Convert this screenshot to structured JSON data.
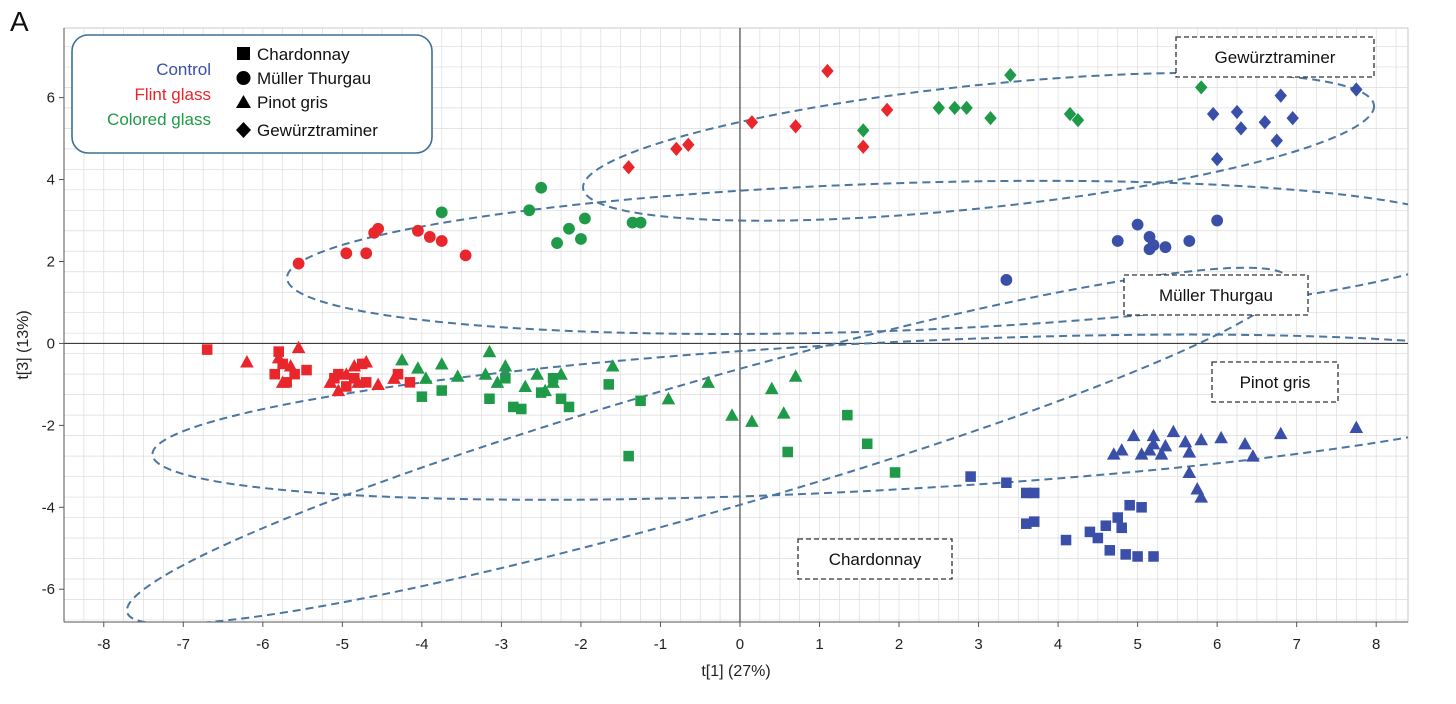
{
  "panel_letter": "A",
  "colors": {
    "Control": "#3a4fa8",
    "Flint glass": "#e8262b",
    "Colored glass": "#1f9a48",
    "ellipse": "#4a76a0",
    "grid": "#dcdcdc"
  },
  "legend": {
    "treatments": [
      "Control",
      "Flint glass",
      "Colored glass"
    ],
    "varieties": [
      "Chardonnay",
      "Müller Thurgau",
      "Pinot gris",
      "Gewürztraminer"
    ],
    "markers": {
      "Chardonnay": "square",
      "Müller Thurgau": "circle",
      "Pinot gris": "triangle",
      "Gewürztraminer": "diamond"
    }
  },
  "chart_data": {
    "type": "scatter",
    "xlabel": "t[1] (27%)",
    "ylabel": "t[3] (13%)",
    "xlim": [
      -8.5,
      8.4
    ],
    "ylim": [
      -6.8,
      7.7
    ],
    "xticks": [
      -8,
      -7,
      -6,
      -5,
      -4,
      -3,
      -2,
      -1,
      0,
      1,
      2,
      3,
      4,
      5,
      6,
      7,
      8
    ],
    "yticks": [
      -6,
      -4,
      -2,
      0,
      2,
      4,
      6
    ],
    "grid": true,
    "cluster_labels": [
      "Gewürztraminer",
      "Müller Thurgau",
      "Pinot gris",
      "Chardonnay"
    ],
    "ellipses": [
      {
        "name": "Gewürztraminer",
        "cx": 3.0,
        "cy": 4.8,
        "rx": 5.0,
        "ry": 1.5,
        "angle_deg": -6
      },
      {
        "name": "Müller Thurgau",
        "cx": 1.8,
        "cy": 2.1,
        "rx": 7.5,
        "ry": 1.8,
        "angle_deg": -2
      },
      {
        "name": "Pinot gris",
        "cx": 1.6,
        "cy": -1.8,
        "rx": 9.0,
        "ry": 1.8,
        "angle_deg": -3
      },
      {
        "name": "Chardonnay",
        "cx": -0.4,
        "cy": -2.5,
        "rx": 7.6,
        "ry": 1.6,
        "angle_deg": -16
      }
    ],
    "series": [
      {
        "variety": "Gewürztraminer",
        "treatment": "Flint glass",
        "points": [
          [
            -1.4,
            4.3
          ],
          [
            -0.8,
            4.75
          ],
          [
            -0.65,
            4.85
          ],
          [
            0.15,
            5.4
          ],
          [
            0.7,
            5.3
          ],
          [
            1.1,
            6.65
          ],
          [
            1.55,
            4.8
          ],
          [
            1.85,
            5.7
          ]
        ]
      },
      {
        "variety": "Gewürztraminer",
        "treatment": "Colored glass",
        "points": [
          [
            1.55,
            5.2
          ],
          [
            2.5,
            5.75
          ],
          [
            2.7,
            5.75
          ],
          [
            2.85,
            5.75
          ],
          [
            3.15,
            5.5
          ],
          [
            3.4,
            6.55
          ],
          [
            4.15,
            5.6
          ],
          [
            4.25,
            5.45
          ],
          [
            5.8,
            6.25
          ]
        ]
      },
      {
        "variety": "Gewürztraminer",
        "treatment": "Control",
        "points": [
          [
            5.95,
            5.6
          ],
          [
            6.0,
            4.5
          ],
          [
            6.25,
            5.65
          ],
          [
            6.3,
            5.25
          ],
          [
            6.6,
            5.4
          ],
          [
            6.75,
            4.95
          ],
          [
            6.8,
            6.05
          ],
          [
            6.95,
            5.5
          ],
          [
            7.75,
            6.2
          ]
        ]
      },
      {
        "variety": "Müller Thurgau",
        "treatment": "Flint glass",
        "points": [
          [
            -5.55,
            1.95
          ],
          [
            -4.95,
            2.2
          ],
          [
            -4.7,
            2.2
          ],
          [
            -4.6,
            2.7
          ],
          [
            -4.55,
            2.8
          ],
          [
            -4.05,
            2.75
          ],
          [
            -3.9,
            2.6
          ],
          [
            -3.75,
            2.5
          ],
          [
            -3.45,
            2.15
          ]
        ]
      },
      {
        "variety": "Müller Thurgau",
        "treatment": "Colored glass",
        "points": [
          [
            -3.75,
            3.2
          ],
          [
            -2.65,
            3.25
          ],
          [
            -2.5,
            3.8
          ],
          [
            -2.3,
            2.45
          ],
          [
            -2.15,
            2.8
          ],
          [
            -2.0,
            2.55
          ],
          [
            -1.95,
            3.05
          ],
          [
            -1.35,
            2.95
          ],
          [
            -1.25,
            2.95
          ]
        ]
      },
      {
        "variety": "Müller Thurgau",
        "treatment": "Control",
        "points": [
          [
            3.35,
            1.55
          ],
          [
            4.75,
            2.5
          ],
          [
            5.0,
            2.9
          ],
          [
            5.15,
            2.6
          ],
          [
            5.15,
            2.3
          ],
          [
            5.2,
            2.4
          ],
          [
            5.35,
            2.35
          ],
          [
            5.65,
            2.5
          ],
          [
            6.0,
            3.0
          ]
        ]
      },
      {
        "variety": "Chardonnay",
        "treatment": "Flint glass",
        "points": [
          [
            -6.7,
            -0.15
          ],
          [
            -5.85,
            -0.75
          ],
          [
            -5.8,
            -0.2
          ],
          [
            -5.75,
            -0.5
          ],
          [
            -5.7,
            -0.95
          ],
          [
            -5.6,
            -0.75
          ],
          [
            -5.45,
            -0.65
          ],
          [
            -5.1,
            -0.85
          ],
          [
            -5.05,
            -0.75
          ],
          [
            -4.95,
            -1.05
          ],
          [
            -4.85,
            -0.85
          ],
          [
            -4.75,
            -0.5
          ],
          [
            -4.7,
            -0.95
          ],
          [
            -4.3,
            -0.75
          ],
          [
            -4.15,
            -0.95
          ]
        ]
      },
      {
        "variety": "Chardonnay",
        "treatment": "Colored glass",
        "points": [
          [
            -4.0,
            -1.3
          ],
          [
            -3.75,
            -1.15
          ],
          [
            -3.15,
            -1.35
          ],
          [
            -2.95,
            -0.85
          ],
          [
            -2.85,
            -1.55
          ],
          [
            -2.75,
            -1.6
          ],
          [
            -2.5,
            -1.2
          ],
          [
            -2.35,
            -0.85
          ],
          [
            -2.25,
            -1.35
          ],
          [
            -2.15,
            -1.55
          ],
          [
            -1.65,
            -1.0
          ],
          [
            -1.4,
            -2.75
          ],
          [
            -1.25,
            -1.4
          ],
          [
            1.35,
            -1.75
          ],
          [
            1.6,
            -2.45
          ],
          [
            0.6,
            -2.65
          ],
          [
            1.95,
            -3.15
          ]
        ]
      },
      {
        "variety": "Chardonnay",
        "treatment": "Control",
        "points": [
          [
            2.9,
            -3.25
          ],
          [
            3.35,
            -3.4
          ],
          [
            3.6,
            -3.65
          ],
          [
            3.7,
            -3.65
          ],
          [
            3.6,
            -4.4
          ],
          [
            3.7,
            -4.35
          ],
          [
            4.1,
            -4.8
          ],
          [
            4.4,
            -4.6
          ],
          [
            4.5,
            -4.75
          ],
          [
            4.6,
            -4.45
          ],
          [
            4.65,
            -5.05
          ],
          [
            4.75,
            -4.25
          ],
          [
            4.8,
            -4.5
          ],
          [
            4.85,
            -5.15
          ],
          [
            4.9,
            -3.95
          ],
          [
            5.0,
            -5.2
          ],
          [
            5.05,
            -4.0
          ],
          [
            5.2,
            -5.2
          ]
        ]
      },
      {
        "variety": "Pinot gris",
        "treatment": "Flint glass",
        "points": [
          [
            -6.2,
            -0.45
          ],
          [
            -5.8,
            -0.35
          ],
          [
            -5.75,
            -0.95
          ],
          [
            -5.65,
            -0.55
          ],
          [
            -5.55,
            -0.1
          ],
          [
            -5.15,
            -0.95
          ],
          [
            -5.05,
            -1.15
          ],
          [
            -4.95,
            -0.75
          ],
          [
            -4.85,
            -0.55
          ],
          [
            -4.8,
            -0.95
          ],
          [
            -4.7,
            -0.45
          ],
          [
            -4.55,
            -1.0
          ],
          [
            -4.35,
            -0.85
          ]
        ]
      },
      {
        "variety": "Pinot gris",
        "treatment": "Colored glass",
        "points": [
          [
            -4.25,
            -0.4
          ],
          [
            -4.05,
            -0.6
          ],
          [
            -3.95,
            -0.85
          ],
          [
            -3.75,
            -0.5
          ],
          [
            -3.55,
            -0.8
          ],
          [
            -3.2,
            -0.75
          ],
          [
            -3.15,
            -0.2
          ],
          [
            -3.05,
            -0.95
          ],
          [
            -2.95,
            -0.55
          ],
          [
            -2.7,
            -1.05
          ],
          [
            -2.55,
            -0.75
          ],
          [
            -2.45,
            -1.15
          ],
          [
            -2.35,
            -0.95
          ],
          [
            -2.25,
            -0.75
          ],
          [
            -1.6,
            -0.55
          ],
          [
            -0.9,
            -1.35
          ],
          [
            -0.4,
            -0.95
          ],
          [
            -0.1,
            -1.75
          ],
          [
            0.15,
            -1.9
          ],
          [
            0.4,
            -1.1
          ],
          [
            0.55,
            -1.7
          ],
          [
            0.7,
            -0.8
          ]
        ]
      },
      {
        "variety": "Pinot gris",
        "treatment": "Control",
        "points": [
          [
            4.7,
            -2.7
          ],
          [
            4.8,
            -2.6
          ],
          [
            4.95,
            -2.25
          ],
          [
            5.05,
            -2.7
          ],
          [
            5.15,
            -2.6
          ],
          [
            5.2,
            -2.25
          ],
          [
            5.3,
            -2.7
          ],
          [
            5.35,
            -2.5
          ],
          [
            5.45,
            -2.15
          ],
          [
            5.6,
            -2.4
          ],
          [
            5.65,
            -2.65
          ],
          [
            5.65,
            -3.15
          ],
          [
            5.75,
            -3.55
          ],
          [
            5.8,
            -3.75
          ],
          [
            5.8,
            -2.35
          ],
          [
            6.05,
            -2.3
          ],
          [
            6.35,
            -2.45
          ],
          [
            6.45,
            -2.75
          ],
          [
            6.8,
            -2.2
          ],
          [
            7.75,
            -2.05
          ],
          [
            5.2,
            -2.45
          ]
        ]
      }
    ]
  }
}
